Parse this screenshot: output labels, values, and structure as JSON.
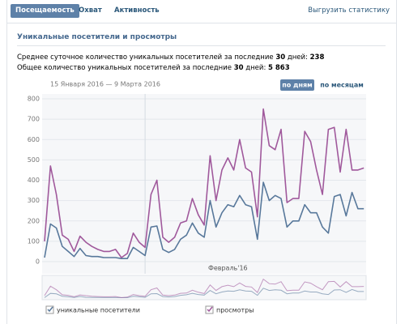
{
  "tabs": [
    "Посещаемость",
    "Охват",
    "Активность"
  ],
  "export_link": "Выгрузить статистику",
  "section_title": "Уникальные посетители и просмотры",
  "stats": [
    {
      "before": "Среднее суточное количество уникальных посетителей за последние",
      "period": "30",
      "after": "дней:",
      "value": "238"
    },
    {
      "before": "Общее количество уникальных посетителей за последние",
      "period": "30",
      "after": "дней:",
      "value": "5 863"
    }
  ],
  "date_range": "15 Января 2016 — 9 Марта 2016",
  "view_buttons": [
    "по дням",
    "по месяцам"
  ],
  "chart_data": {
    "type": "line",
    "categories": [
      null,
      null,
      null,
      null,
      null,
      null,
      null,
      null,
      null,
      null,
      null,
      null,
      null,
      null,
      null,
      null,
      null,
      "Февраль'16",
      null,
      null,
      null,
      null,
      null,
      null,
      null,
      null,
      null,
      null,
      null,
      null,
      null,
      null,
      null,
      null,
      null,
      null,
      null,
      null,
      null,
      null,
      null,
      null,
      null,
      null,
      null,
      null,
      null,
      null,
      null,
      null,
      null,
      null,
      null,
      null,
      null
    ],
    "series": [
      {
        "name": "уникальные посетители",
        "color": "#58789b",
        "values": [
          20,
          185,
          165,
          75,
          50,
          25,
          65,
          30,
          25,
          25,
          20,
          20,
          20,
          15,
          15,
          70,
          50,
          30,
          170,
          175,
          60,
          45,
          60,
          110,
          130,
          190,
          140,
          120,
          300,
          170,
          240,
          280,
          270,
          325,
          280,
          270,
          110,
          390,
          300,
          325,
          310,
          170,
          200,
          200,
          280,
          240,
          240,
          170,
          140,
          320,
          330,
          225,
          340,
          260,
          260
        ]
      },
      {
        "name": "просмотры",
        "color": "#a0599c",
        "values": [
          100,
          470,
          330,
          130,
          110,
          50,
          125,
          95,
          75,
          60,
          50,
          50,
          60,
          20,
          40,
          140,
          95,
          70,
          330,
          400,
          120,
          95,
          120,
          190,
          200,
          310,
          230,
          180,
          520,
          300,
          450,
          510,
          450,
          600,
          460,
          440,
          220,
          750,
          570,
          550,
          650,
          290,
          310,
          310,
          640,
          590,
          450,
          330,
          650,
          660,
          440,
          650,
          450,
          450,
          460
        ]
      }
    ],
    "ylim": [
      0,
      800
    ],
    "yticks": [
      0,
      100,
      200,
      300,
      400,
      500,
      600,
      700,
      800
    ],
    "grid": true
  }
}
